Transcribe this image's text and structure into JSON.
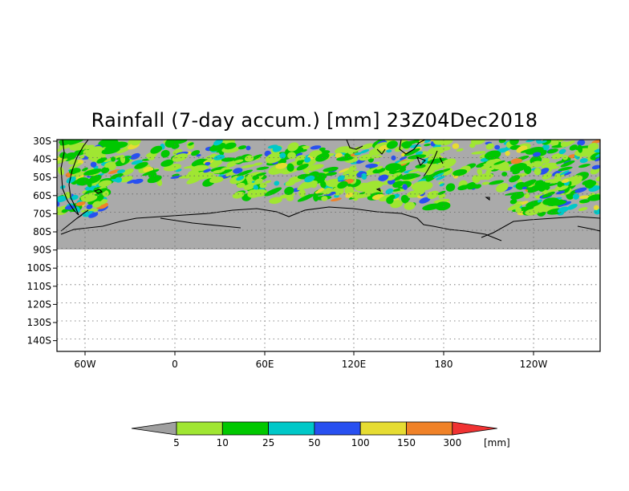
{
  "title": "Rainfall (7-day accum.) [mm] 23Z04Dec2018",
  "map": {
    "lat_labels": [
      "30S",
      "40S",
      "50S",
      "60S",
      "70S",
      "80S",
      "90S",
      "100S",
      "110S",
      "120S",
      "130S",
      "140S"
    ],
    "lon_labels": [
      "60W",
      "0",
      "60E",
      "120E",
      "180",
      "120W"
    ],
    "no_data_color": "#aaaaaa",
    "grid": true,
    "coastline_color": "#000000"
  },
  "colorbar": {
    "unit": "[mm]",
    "colors": [
      "#a0a0a0",
      "#a0e632",
      "#00c800",
      "#00c8c8",
      "#2850f0",
      "#e6dc32",
      "#f08228",
      "#f03232"
    ],
    "labels": [
      "5",
      "10",
      "25",
      "50",
      "100",
      "150",
      "300"
    ]
  }
}
